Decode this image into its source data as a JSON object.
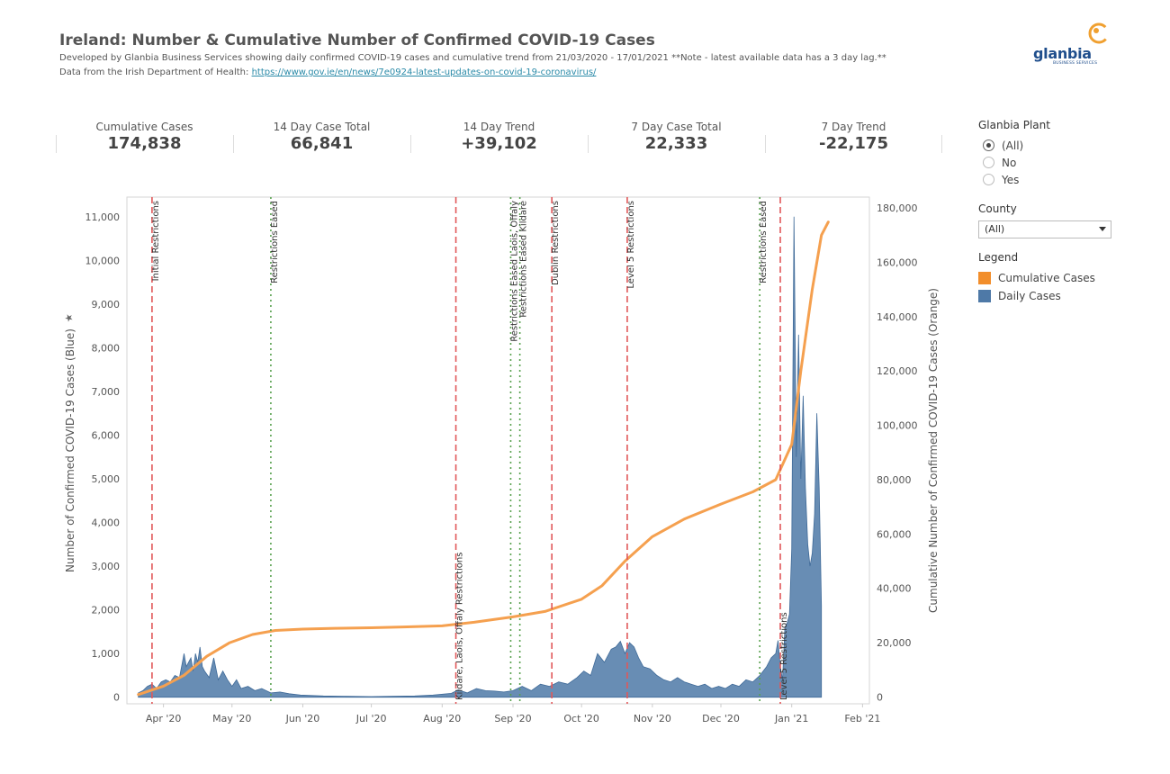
{
  "header": {
    "title": "Ireland: Number & Cumulative Number of Confirmed COVID-19 Cases",
    "subtitle": "Developed by Glanbia Business Services showing daily confirmed COVID-19 cases  and cumulative trend from 21/03/2020 - 17/01/2021 **Note - latest available data has a 3 day lag.**",
    "source_prefix": "Data from the Irish Department of Health: ",
    "source_link": "https://www.gov.ie/en/news/7e0924-latest-updates-on-covid-19-coronavirus/"
  },
  "logo": {
    "word": "glanbia",
    "sub": "BUSINESS SERVICES",
    "colors": {
      "text": "#1f4e8c",
      "mark": "#f0a030"
    }
  },
  "kpis": [
    {
      "label": "Cumulative Cases",
      "value": "174,838"
    },
    {
      "label": "14 Day Case Total",
      "value": "66,841"
    },
    {
      "label": "14 Day Trend",
      "value": "+39,102"
    },
    {
      "label": "7 Day Case Total",
      "value": "22,333"
    },
    {
      "label": "7 Day Trend",
      "value": "-22,175"
    }
  ],
  "filters": {
    "plant": {
      "label": "Glanbia Plant",
      "options": [
        {
          "label": "(All)",
          "selected": true
        },
        {
          "label": "No",
          "selected": false
        },
        {
          "label": "Yes",
          "selected": false
        }
      ]
    },
    "county": {
      "label": "County",
      "value": "(All)"
    }
  },
  "legend": {
    "title": "Legend",
    "items": [
      {
        "label": "Cumulative Cases",
        "color": "#f28e2b"
      },
      {
        "label": "Daily Cases",
        "color": "#4e79a7"
      }
    ]
  },
  "chart_data": {
    "type": "area",
    "xlabel": "",
    "ylabel": "Number of Confirmed COVID-19 Cases (Blue)",
    "y2label": "Cumulative Number of Confirmed COVID-19 Cases (Orange)",
    "x_range": [
      "2020-03-16",
      "2021-02-04"
    ],
    "ylim": [
      -150,
      11450
    ],
    "y2lim": [
      -2500,
      184000
    ],
    "yticks": [
      0,
      1000,
      2000,
      3000,
      4000,
      5000,
      6000,
      7000,
      8000,
      9000,
      10000,
      11000
    ],
    "y2ticks": [
      0,
      20000,
      40000,
      60000,
      80000,
      100000,
      120000,
      140000,
      160000,
      180000
    ],
    "xticks": [
      {
        "date": "2020-04-01",
        "label": "Apr '20"
      },
      {
        "date": "2020-05-01",
        "label": "May '20"
      },
      {
        "date": "2020-06-01",
        "label": "Jun '20"
      },
      {
        "date": "2020-07-01",
        "label": "Jul '20"
      },
      {
        "date": "2020-08-01",
        "label": "Aug '20"
      },
      {
        "date": "2020-09-01",
        "label": "Sep '20"
      },
      {
        "date": "2020-10-01",
        "label": "Oct '20"
      },
      {
        "date": "2020-11-01",
        "label": "Nov '20"
      },
      {
        "date": "2020-12-01",
        "label": "Dec '20"
      },
      {
        "date": "2021-01-01",
        "label": "Jan '21"
      },
      {
        "date": "2021-02-01",
        "label": "Feb '21"
      }
    ],
    "grid": false,
    "series": [
      {
        "name": "Daily Cases",
        "color": "#4e79a7",
        "axis": "left",
        "points": [
          [
            "2020-03-21",
            100
          ],
          [
            "2020-03-23",
            150
          ],
          [
            "2020-03-25",
            250
          ],
          [
            "2020-03-27",
            300
          ],
          [
            "2020-03-29",
            200
          ],
          [
            "2020-03-31",
            350
          ],
          [
            "2020-04-02",
            400
          ],
          [
            "2020-04-04",
            350
          ],
          [
            "2020-04-06",
            500
          ],
          [
            "2020-04-08",
            450
          ],
          [
            "2020-04-10",
            1000
          ],
          [
            "2020-04-11",
            700
          ],
          [
            "2020-04-12",
            800
          ],
          [
            "2020-04-13",
            900
          ],
          [
            "2020-04-14",
            600
          ],
          [
            "2020-04-15",
            1000
          ],
          [
            "2020-04-16",
            800
          ],
          [
            "2020-04-17",
            1150
          ],
          [
            "2020-04-18",
            700
          ],
          [
            "2020-04-19",
            600
          ],
          [
            "2020-04-21",
            450
          ],
          [
            "2020-04-23",
            900
          ],
          [
            "2020-04-25",
            400
          ],
          [
            "2020-04-27",
            600
          ],
          [
            "2020-04-29",
            400
          ],
          [
            "2020-05-01",
            250
          ],
          [
            "2020-05-03",
            400
          ],
          [
            "2020-05-05",
            200
          ],
          [
            "2020-05-08",
            250
          ],
          [
            "2020-05-11",
            150
          ],
          [
            "2020-05-14",
            200
          ],
          [
            "2020-05-18",
            100
          ],
          [
            "2020-05-22",
            120
          ],
          [
            "2020-05-26",
            80
          ],
          [
            "2020-05-31",
            50
          ],
          [
            "2020-06-10",
            30
          ],
          [
            "2020-06-20",
            20
          ],
          [
            "2020-07-01",
            15
          ],
          [
            "2020-07-10",
            20
          ],
          [
            "2020-07-20",
            30
          ],
          [
            "2020-07-28",
            50
          ],
          [
            "2020-08-05",
            90
          ],
          [
            "2020-08-08",
            170
          ],
          [
            "2020-08-12",
            100
          ],
          [
            "2020-08-16",
            200
          ],
          [
            "2020-08-20",
            150
          ],
          [
            "2020-08-24",
            140
          ],
          [
            "2020-08-28",
            120
          ],
          [
            "2020-09-01",
            150
          ],
          [
            "2020-09-05",
            250
          ],
          [
            "2020-09-09",
            150
          ],
          [
            "2020-09-13",
            300
          ],
          [
            "2020-09-17",
            250
          ],
          [
            "2020-09-21",
            350
          ],
          [
            "2020-09-25",
            300
          ],
          [
            "2020-09-29",
            450
          ],
          [
            "2020-10-02",
            600
          ],
          [
            "2020-10-05",
            500
          ],
          [
            "2020-10-08",
            1000
          ],
          [
            "2020-10-11",
            800
          ],
          [
            "2020-10-14",
            1100
          ],
          [
            "2020-10-16",
            1150
          ],
          [
            "2020-10-18",
            1280
          ],
          [
            "2020-10-20",
            1000
          ],
          [
            "2020-10-22",
            1250
          ],
          [
            "2020-10-24",
            1150
          ],
          [
            "2020-10-26",
            900
          ],
          [
            "2020-10-28",
            700
          ],
          [
            "2020-10-31",
            650
          ],
          [
            "2020-11-03",
            500
          ],
          [
            "2020-11-06",
            400
          ],
          [
            "2020-11-09",
            350
          ],
          [
            "2020-11-12",
            450
          ],
          [
            "2020-11-15",
            350
          ],
          [
            "2020-11-18",
            300
          ],
          [
            "2020-11-21",
            250
          ],
          [
            "2020-11-24",
            300
          ],
          [
            "2020-11-27",
            200
          ],
          [
            "2020-11-30",
            250
          ],
          [
            "2020-12-03",
            200
          ],
          [
            "2020-12-06",
            300
          ],
          [
            "2020-12-09",
            250
          ],
          [
            "2020-12-12",
            400
          ],
          [
            "2020-12-15",
            350
          ],
          [
            "2020-12-18",
            500
          ],
          [
            "2020-12-21",
            700
          ],
          [
            "2020-12-23",
            900
          ],
          [
            "2020-12-25",
            1000
          ],
          [
            "2020-12-26",
            1300
          ],
          [
            "2020-12-27",
            700
          ],
          [
            "2020-12-28",
            400
          ],
          [
            "2020-12-29",
            1600
          ],
          [
            "2020-12-30",
            1700
          ],
          [
            "2020-12-31",
            1900
          ],
          [
            "2021-01-01",
            3400
          ],
          [
            "2021-01-02",
            11000
          ],
          [
            "2021-01-03",
            5500
          ],
          [
            "2021-01-04",
            8300
          ],
          [
            "2021-01-05",
            5000
          ],
          [
            "2021-01-06",
            6900
          ],
          [
            "2021-01-07",
            4800
          ],
          [
            "2021-01-08",
            3500
          ],
          [
            "2021-01-09",
            3000
          ],
          [
            "2021-01-10",
            3300
          ],
          [
            "2021-01-11",
            4200
          ],
          [
            "2021-01-12",
            6500
          ],
          [
            "2021-01-13",
            4800
          ],
          [
            "2021-01-14",
            2100
          ]
        ]
      },
      {
        "name": "Cumulative Cases",
        "color": "#f28e2b",
        "axis": "right",
        "points": [
          [
            "2020-03-21",
            900
          ],
          [
            "2020-04-01",
            4000
          ],
          [
            "2020-04-10",
            8000
          ],
          [
            "2020-04-20",
            15000
          ],
          [
            "2020-04-30",
            20000
          ],
          [
            "2020-05-10",
            23000
          ],
          [
            "2020-05-20",
            24500
          ],
          [
            "2020-06-01",
            25000
          ],
          [
            "2020-06-15",
            25300
          ],
          [
            "2020-07-01",
            25500
          ],
          [
            "2020-07-15",
            25800
          ],
          [
            "2020-08-01",
            26200
          ],
          [
            "2020-08-15",
            27500
          ],
          [
            "2020-09-01",
            29500
          ],
          [
            "2020-09-15",
            31500
          ],
          [
            "2020-10-01",
            36000
          ],
          [
            "2020-10-10",
            41000
          ],
          [
            "2020-10-20",
            50000
          ],
          [
            "2020-11-01",
            59000
          ],
          [
            "2020-11-15",
            65500
          ],
          [
            "2020-12-01",
            71000
          ],
          [
            "2020-12-15",
            75500
          ],
          [
            "2020-12-25",
            80000
          ],
          [
            "2021-01-01",
            93000
          ],
          [
            "2021-01-05",
            120000
          ],
          [
            "2021-01-10",
            150000
          ],
          [
            "2021-01-14",
            170000
          ],
          [
            "2021-01-17",
            174838
          ]
        ]
      }
    ],
    "events": [
      {
        "date": "2020-03-27",
        "label": "Initial Restrictions",
        "style": "restriction",
        "label_pos": "top"
      },
      {
        "date": "2020-05-18",
        "label": "Restrictions Eased",
        "style": "eased",
        "label_pos": "top"
      },
      {
        "date": "2020-08-07",
        "label": "Kildare, Laois, Offaly Restrictions",
        "style": "restriction",
        "label_pos": "bottom"
      },
      {
        "date": "2020-08-31",
        "label": "Restrictions Eased Laois, Offaly",
        "style": "eased",
        "label_pos": "top"
      },
      {
        "date": "2020-09-04",
        "label": "Restrictions Eased Kildare",
        "style": "eased",
        "label_pos": "top"
      },
      {
        "date": "2020-09-18",
        "label": "Dublin Restrictions",
        "style": "restriction",
        "label_pos": "top"
      },
      {
        "date": "2020-10-21",
        "label": "Level 5 Restrictions",
        "style": "restriction",
        "label_pos": "top"
      },
      {
        "date": "2020-12-18",
        "label": "Restrictions Eased",
        "style": "eased",
        "label_pos": "top"
      },
      {
        "date": "2020-12-27",
        "label": "Level 5 Restrictions",
        "style": "restriction",
        "label_pos": "bottom"
      }
    ],
    "event_colors": {
      "restriction": "#e15759",
      "eased": "#59a14f"
    }
  }
}
